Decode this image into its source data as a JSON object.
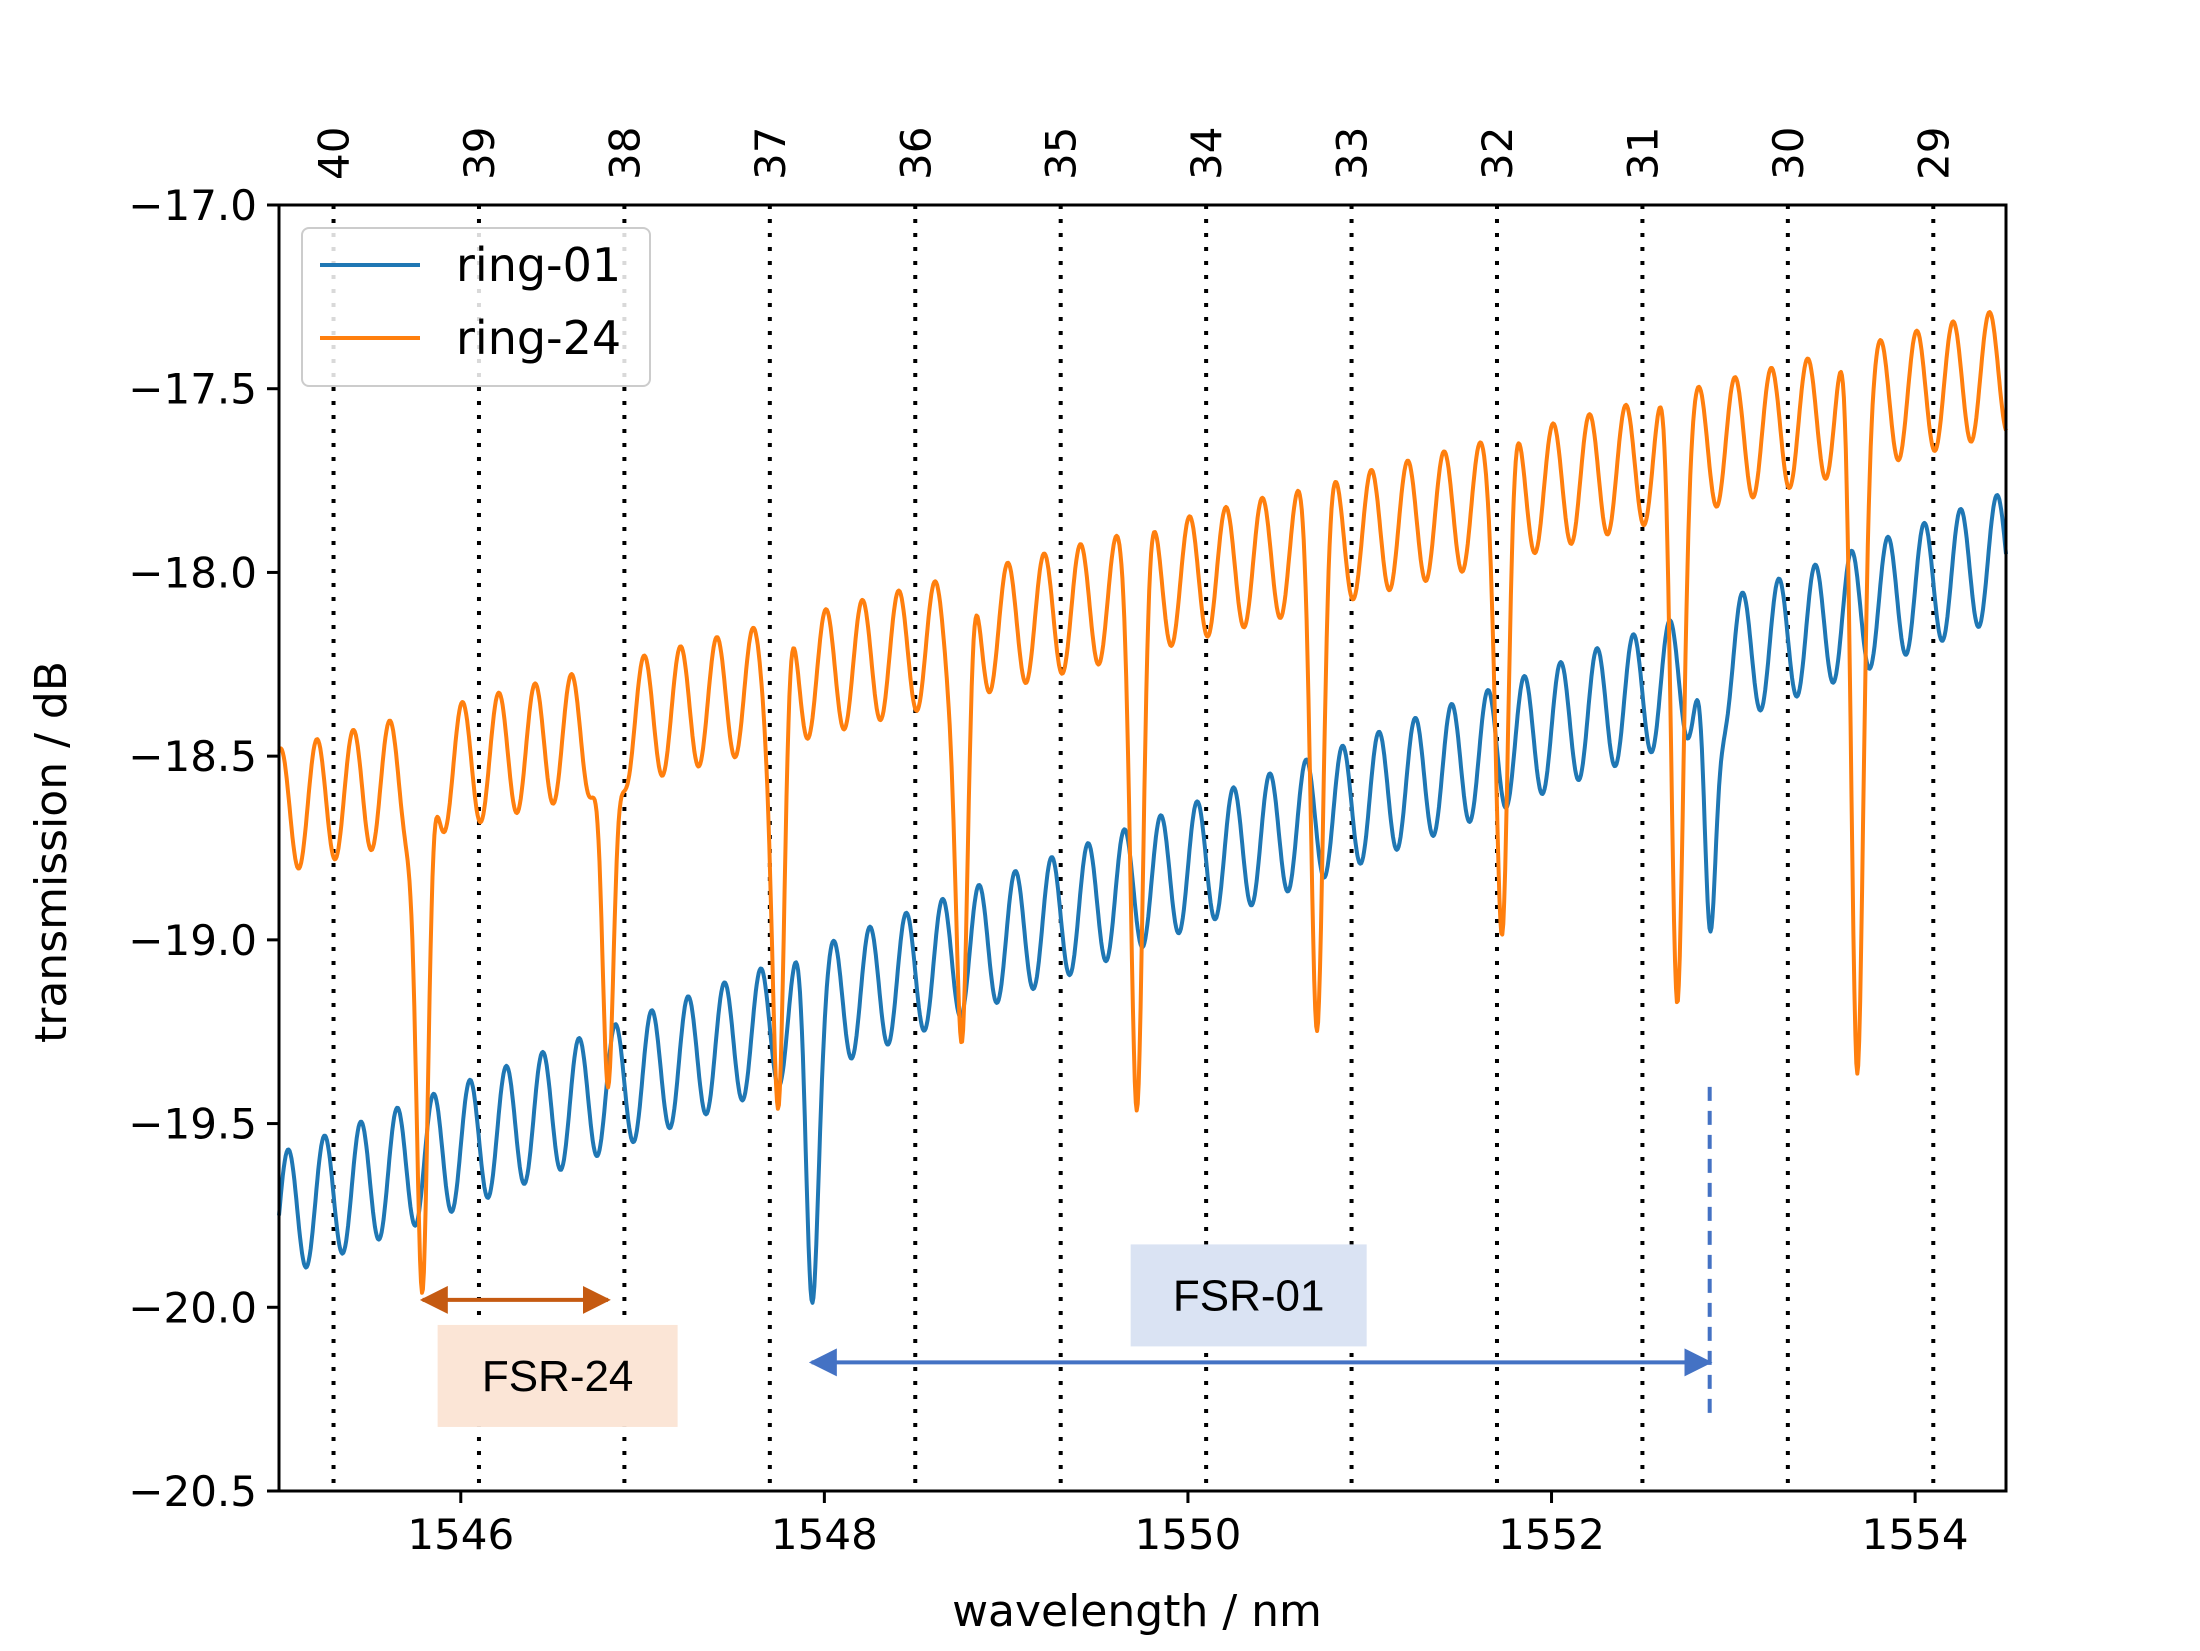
{
  "chart_data": {
    "type": "line",
    "xlabel": "wavelength / nm",
    "ylabel": "transmission / dB",
    "xlim": [
      1545.0,
      1554.5
    ],
    "ylim": [
      -20.5,
      -17.0
    ],
    "xticks": [
      1546,
      1548,
      1550,
      1552,
      1554
    ],
    "xtick_labels": [
      "1546",
      "1548",
      "1550",
      "1552",
      "1554"
    ],
    "yticks": [
      -17.0,
      -17.5,
      -18.0,
      -18.5,
      -19.0,
      -19.5,
      -20.0,
      -20.5
    ],
    "ytick_labels": [
      "−17.0",
      "−17.5",
      "−18.0",
      "−18.5",
      "−19.0",
      "−19.5",
      "−20.0",
      "−20.5"
    ],
    "grid": false,
    "legend_position": "top-left",
    "channels": [
      {
        "label": "40",
        "x": 1545.3
      },
      {
        "label": "39",
        "x": 1546.1
      },
      {
        "label": "38",
        "x": 1546.9
      },
      {
        "label": "37",
        "x": 1547.7
      },
      {
        "label": "36",
        "x": 1548.5
      },
      {
        "label": "35",
        "x": 1549.3
      },
      {
        "label": "34",
        "x": 1550.1
      },
      {
        "label": "33",
        "x": 1550.9
      },
      {
        "label": "32",
        "x": 1551.7
      },
      {
        "label": "31",
        "x": 1552.5
      },
      {
        "label": "30",
        "x": 1553.3
      },
      {
        "label": "29",
        "x": 1554.1
      }
    ],
    "series": [
      {
        "name": "ring-01",
        "color": "#1f77b4",
        "baseline_start": -19.75,
        "baseline_end": -17.95,
        "ripple_amplitude": 0.17,
        "ripple_period_nm": 0.2,
        "dips": [
          {
            "x": 1547.93,
            "depth": 0.65
          },
          {
            "x": 1552.87,
            "depth": 0.85
          }
        ]
      },
      {
        "name": "ring-24",
        "color": "#ff7f0e",
        "baseline_start": -18.65,
        "baseline_end": -17.45,
        "ripple_amplitude": 0.17,
        "ripple_period_nm": 0.2,
        "dips": [
          {
            "x": 1545.79,
            "depth": 1.55
          },
          {
            "x": 1546.81,
            "depth": 1.15
          },
          {
            "x": 1547.75,
            "depth": 1.1
          },
          {
            "x": 1548.76,
            "depth": 1.1
          },
          {
            "x": 1549.72,
            "depth": 1.25
          },
          {
            "x": 1550.71,
            "depth": 1.15
          },
          {
            "x": 1551.73,
            "depth": 1.05
          },
          {
            "x": 1552.69,
            "depth": 1.35
          },
          {
            "x": 1553.68,
            "depth": 1.7
          }
        ]
      }
    ],
    "annotations": [
      {
        "label": "FSR-24",
        "x1": 1545.79,
        "x2": 1546.81,
        "y": -19.98,
        "color": "#c55a11",
        "box_color": "#fbe5d6"
      },
      {
        "label": "FSR-01",
        "x1": 1547.93,
        "x2": 1552.87,
        "y": -20.15,
        "color": "#4472c4",
        "box_color": "#dae3f3"
      }
    ]
  }
}
